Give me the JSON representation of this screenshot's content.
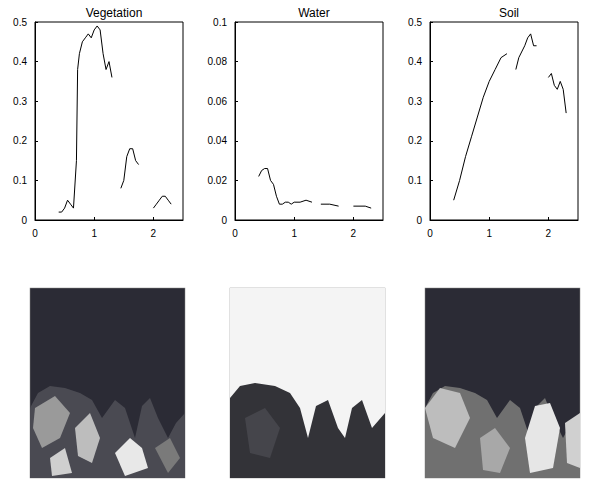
{
  "chart_data": [
    {
      "type": "line",
      "title": "Vegetation",
      "color": "#000000",
      "grid": false,
      "x": [
        0.4,
        0.45,
        0.5,
        0.55,
        0.6,
        0.65,
        0.7,
        0.72,
        0.75,
        0.8,
        0.85,
        0.9,
        0.95,
        1.0,
        1.05,
        1.1,
        1.15,
        1.2,
        1.25,
        1.3,
        1.35,
        1.4,
        1.45,
        1.5,
        1.55,
        1.6,
        1.65,
        1.7,
        1.75,
        1.8,
        1.9,
        2.0,
        2.05,
        2.1,
        2.15,
        2.2,
        2.25,
        2.3
      ],
      "values": [
        0.02,
        0.02,
        0.03,
        0.05,
        0.04,
        0.03,
        0.15,
        0.38,
        0.42,
        0.45,
        0.46,
        0.47,
        0.46,
        0.48,
        0.49,
        0.48,
        0.42,
        0.38,
        0.4,
        0.36,
        null,
        null,
        0.08,
        0.1,
        0.16,
        0.18,
        0.18,
        0.15,
        0.14,
        null,
        null,
        0.03,
        0.04,
        0.05,
        0.06,
        0.06,
        0.05,
        0.04
      ],
      "xlim": [
        0,
        2.5
      ],
      "xticks": [
        0,
        1,
        2
      ],
      "ylim": [
        0,
        0.5
      ],
      "yticks": [
        0,
        0.1,
        0.2,
        0.3,
        0.4,
        0.5
      ]
    },
    {
      "type": "line",
      "title": "Water",
      "color": "#000000",
      "grid": false,
      "x": [
        0.4,
        0.45,
        0.5,
        0.55,
        0.6,
        0.65,
        0.7,
        0.75,
        0.8,
        0.85,
        0.9,
        0.95,
        1.0,
        1.1,
        1.2,
        1.3,
        1.35,
        1.45,
        1.6,
        1.75,
        1.85,
        2.0,
        2.2,
        2.3
      ],
      "values": [
        0.022,
        0.025,
        0.026,
        0.026,
        0.02,
        0.018,
        0.012,
        0.008,
        0.008,
        0.009,
        0.009,
        0.008,
        0.009,
        0.009,
        0.01,
        0.009,
        null,
        0.008,
        0.008,
        0.007,
        null,
        0.007,
        0.007,
        0.006
      ],
      "xlim": [
        0,
        2.5
      ],
      "xticks": [
        0,
        1,
        2
      ],
      "ylim": [
        0,
        0.1
      ],
      "yticks": [
        0,
        0.02,
        0.04,
        0.06,
        0.08,
        0.1
      ]
    },
    {
      "type": "line",
      "title": "Soil",
      "color": "#000000",
      "grid": false,
      "x": [
        0.4,
        0.5,
        0.6,
        0.7,
        0.8,
        0.9,
        1.0,
        1.1,
        1.2,
        1.3,
        1.35,
        1.45,
        1.5,
        1.6,
        1.65,
        1.7,
        1.75,
        1.8,
        1.85,
        2.0,
        2.05,
        2.1,
        2.15,
        2.2,
        2.25,
        2.3
      ],
      "values": [
        0.05,
        0.1,
        0.16,
        0.21,
        0.26,
        0.31,
        0.35,
        0.38,
        0.41,
        0.42,
        null,
        0.38,
        0.41,
        0.44,
        0.46,
        0.47,
        0.44,
        0.44,
        null,
        0.36,
        0.37,
        0.34,
        0.33,
        0.35,
        0.33,
        0.27
      ],
      "xlim": [
        0,
        2.5
      ],
      "xticks": [
        0,
        1,
        2
      ],
      "ylim": [
        0,
        0.5
      ],
      "yticks": [
        0,
        0.1,
        0.2,
        0.3,
        0.4,
        0.5
      ]
    }
  ]
}
